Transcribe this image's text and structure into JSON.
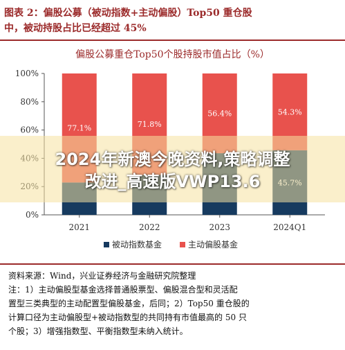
{
  "header": {
    "figure_title_line1": "图表 2：偏股公募（被动指数+主动偏股）Top50 重仓股",
    "figure_title_line2": "中，被动持股占比已经超过 45%"
  },
  "chart_data": {
    "type": "bar",
    "stacked": true,
    "title": "偏股公募重仓Top50个股持股市值占比（%）",
    "categories": [
      "2021",
      "2022",
      "2023",
      "2024Q1"
    ],
    "series": [
      {
        "name": "被动指数基金",
        "values": [
          22.9,
          28.2,
          43.6,
          45.7
        ],
        "color": "#163a5f"
      },
      {
        "name": "主动偏股基金",
        "values": [
          77.1,
          71.8,
          56.4,
          54.3
        ],
        "color": "#e8524d"
      }
    ],
    "bar_labels": {
      "被动指数基金": [
        "",
        "",
        "",
        "45.7%"
      ],
      "主动偏股基金": [
        "77.1%",
        "71.8%",
        "56.4%",
        "54.3%"
      ]
    },
    "yticks": [
      "0%",
      "20%",
      "40%",
      "60%",
      "80%",
      "100%"
    ],
    "ylim": [
      0,
      100
    ],
    "grid": false,
    "legend": "bottom"
  },
  "watermark": {
    "line1": "2024年新澳今晚资料,策略调整",
    "line2": "改进_高速版VWP13.6"
  },
  "notes": {
    "source": "资料来源：Wind，兴业证券经济与金融研究院整理",
    "note_lines": [
      "注：1）主动偏股型基金选择普通股票型、偏股混合型和灵活配",
      "置型三类典型的主动配置型偏股基金，后同；2）Top50 重仓股的",
      "计算口径为主动偏股型+被动指数型的共同持有市值最高的 50 只",
      "个股；3）增强指数型、平衡指数型未纳入统计。"
    ]
  }
}
